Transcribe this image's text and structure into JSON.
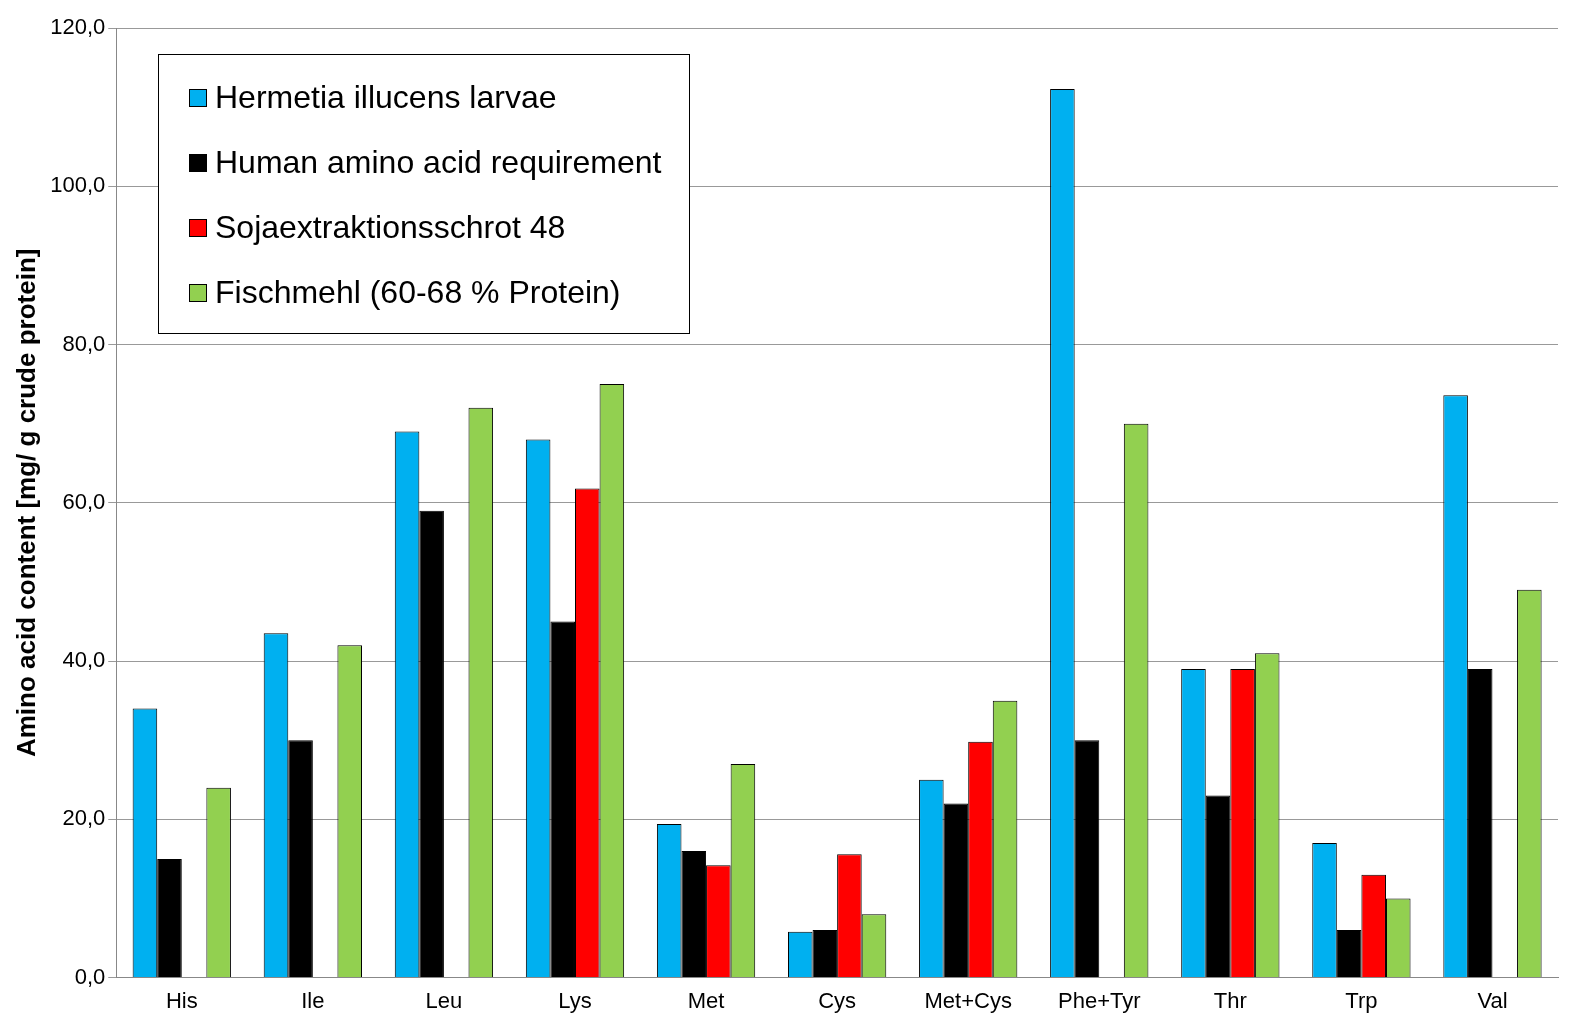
{
  "chart_data": {
    "type": "bar",
    "ylabel": "Amino acid content [mg/ g crude protein]",
    "categories": [
      "His",
      "Ile",
      "Leu",
      "Lys",
      "Met",
      "Cys",
      "Met+Cys",
      "Phe+Tyr",
      "Thr",
      "Trp",
      "Val"
    ],
    "series": [
      {
        "name": "Hermetia illucens larvae",
        "color": "#00b0f0",
        "values": [
          34,
          43.5,
          69,
          68,
          19.4,
          5.8,
          25,
          112.3,
          39,
          17,
          73.6
        ]
      },
      {
        "name": "Human amino acid requirement",
        "color": "#000000",
        "values": [
          15,
          30,
          59,
          45,
          16,
          6,
          22,
          30,
          23,
          6,
          39
        ]
      },
      {
        "name": "Sojaextraktionsschrot 48",
        "color": "#ff0000",
        "values": [
          null,
          null,
          null,
          61.8,
          14.2,
          15.6,
          29.8,
          null,
          39,
          13,
          null
        ]
      },
      {
        "name": "Fischmehl (60-68 % Protein)",
        "color": "#92d050",
        "values": [
          24,
          42,
          72,
          75,
          27,
          8,
          35,
          70,
          41,
          10,
          49
        ]
      }
    ],
    "ylim": [
      0,
      120
    ],
    "yticks": [
      {
        "value": 0,
        "label": "0,0"
      },
      {
        "value": 20,
        "label": "20,0"
      },
      {
        "value": 40,
        "label": "40,0"
      },
      {
        "value": 60,
        "label": "60,0"
      },
      {
        "value": 80,
        "label": "80,0"
      },
      {
        "value": 100,
        "label": "100,0"
      },
      {
        "value": 120,
        "label": "120,0"
      }
    ],
    "grid": "y",
    "legend": "top left"
  }
}
